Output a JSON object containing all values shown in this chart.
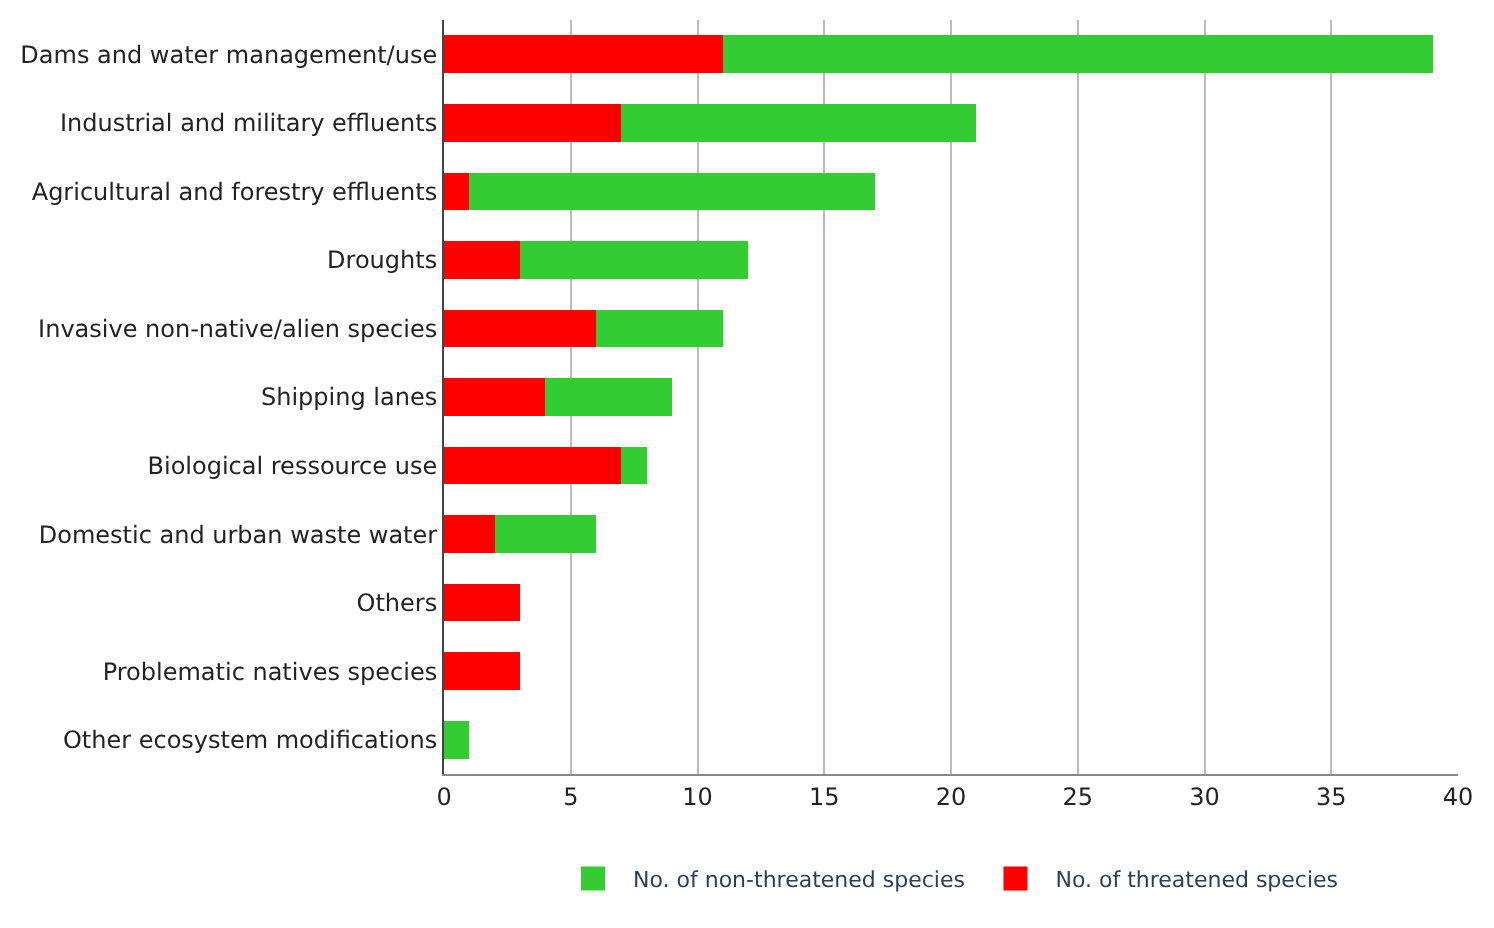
{
  "chart_data": {
    "type": "bar",
    "orientation": "horizontal",
    "stacked": true,
    "categories": [
      "Dams and water management/use",
      "Industrial and military effluents",
      "Agricultural and forestry effluents",
      "Droughts",
      "Invasive non-native/alien species",
      "Shipping lanes",
      "Biological ressource use",
      "Domestic and urban waste water",
      "Others",
      "Problematic natives species",
      "Other ecosystem modifications"
    ],
    "series": [
      {
        "name": "No. of threatened species",
        "color": "#ff0000",
        "values": [
          11,
          7,
          1,
          3,
          6,
          4,
          7,
          2,
          3,
          3,
          0
        ]
      },
      {
        "name": "No. of non-threatened species",
        "color": "#33cc33",
        "values": [
          28,
          14,
          16,
          9,
          5,
          5,
          1,
          4,
          0,
          0,
          1
        ]
      }
    ],
    "xlim": [
      0,
      40
    ],
    "xticks": [
      0,
      5,
      10,
      15,
      20,
      25,
      30,
      35,
      40
    ],
    "grid": "x",
    "legend": "bottom"
  }
}
